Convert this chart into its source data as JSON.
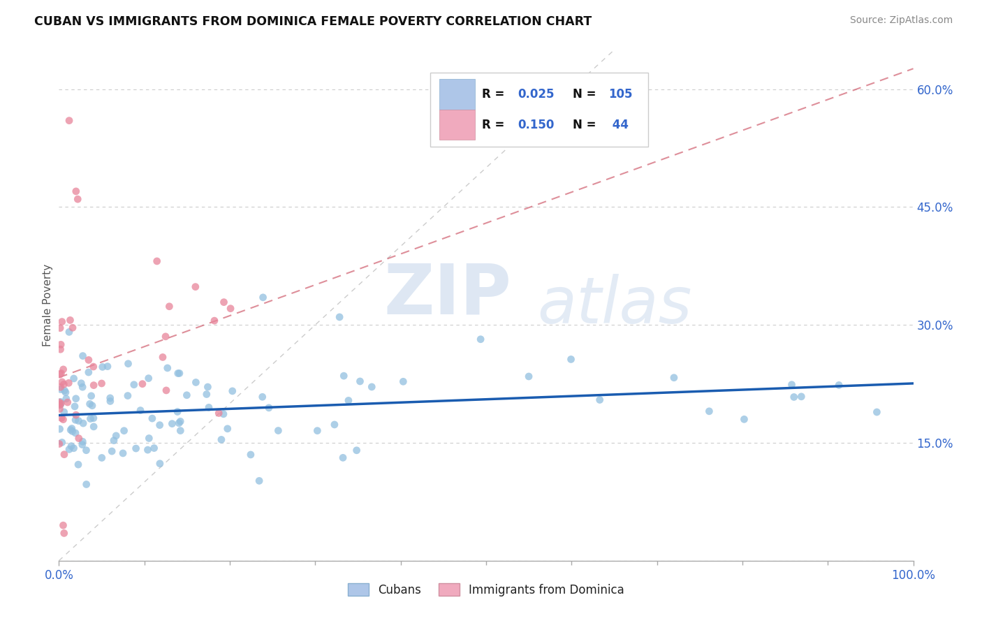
{
  "title": "CUBAN VS IMMIGRANTS FROM DOMINICA FEMALE POVERTY CORRELATION CHART",
  "source": "Source: ZipAtlas.com",
  "ylabel": "Female Poverty",
  "right_yticklabels": [
    "",
    "15.0%",
    "30.0%",
    "45.0%",
    "60.0%"
  ],
  "right_ytick_vals": [
    0.0,
    0.15,
    0.3,
    0.45,
    0.6
  ],
  "cubans_color": "#92bfdf",
  "dominica_color": "#e8849a",
  "cubans_R": 0.025,
  "dominica_R": 0.15,
  "cubans_N": 105,
  "dominica_N": 44,
  "background_color": "#ffffff",
  "xlim": [
    0.0,
    1.0
  ],
  "ylim": [
    0.0,
    0.65
  ],
  "watermark_zip": "ZIP",
  "watermark_atlas": "atlas",
  "legend_box_color": "#ffffff",
  "legend_border_color": "#cccccc",
  "reg_line_cubans_color": "#1a5cb0",
  "reg_line_dominica_color": "#d06070",
  "diag_line_color": "#cccccc"
}
